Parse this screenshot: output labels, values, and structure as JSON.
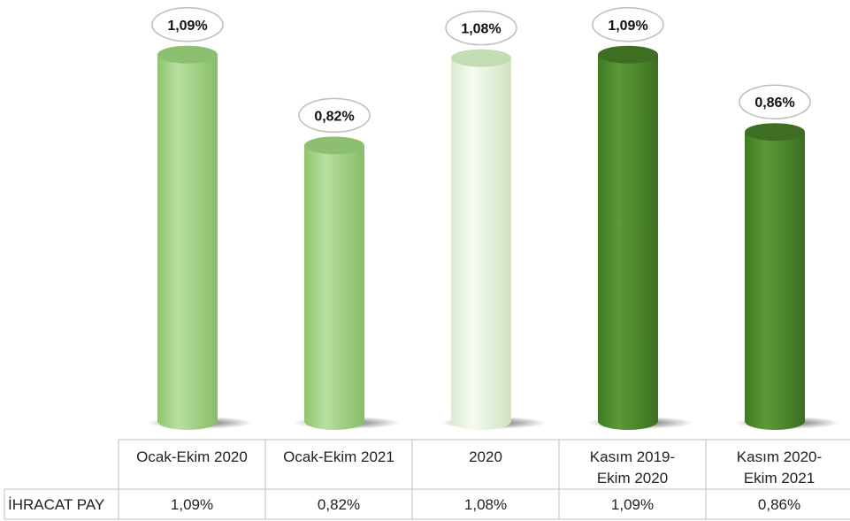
{
  "chart_data": {
    "type": "bar",
    "categories": [
      "Ocak-Ekim 2020",
      "Ocak-Ekim 2021",
      "2020",
      "Kasım 2019-\nEkim 2020",
      "Kasım 2020-\nEkim 2021"
    ],
    "series": [
      {
        "name": "İHRACAT PAY",
        "values": [
          1.09,
          0.82,
          1.08,
          1.09,
          0.86
        ]
      }
    ],
    "value_labels": [
      "1,09%",
      "0,82%",
      "1,08%",
      "1,09%",
      "0,86%"
    ],
    "table_values": [
      "1,09%",
      "0,82%",
      "1,08%",
      "1,09%",
      "0,86%"
    ],
    "ylim": [
      0,
      1.1
    ],
    "grid": false,
    "legend": "data table below chart",
    "colors": [
      "#a6d38f",
      "#a6d38f",
      "#e6f2da",
      "#4e8a2e",
      "#4e8a2e"
    ]
  }
}
